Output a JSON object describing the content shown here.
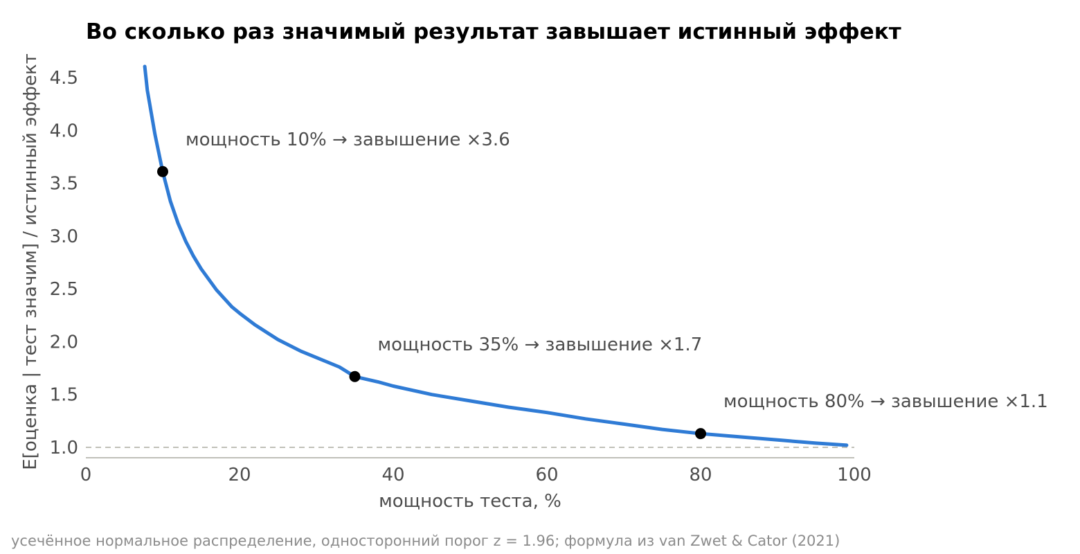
{
  "chart_data": {
    "type": "line",
    "title": "Во сколько раз значимый результат завышает истинный эффект",
    "xlabel": "мощность теста, %",
    "ylabel": "E[оценка | тест значим] / истинный эффект",
    "xlim": [
      0,
      100
    ],
    "ylim": [
      0.9,
      4.65
    ],
    "x_ticks": [
      "0",
      "20",
      "40",
      "60",
      "80",
      "100"
    ],
    "y_ticks": [
      "1.0",
      "1.5",
      "2.0",
      "2.5",
      "3.0",
      "3.5",
      "4.0",
      "4.5"
    ],
    "reference_line": {
      "y": 1.0,
      "style": "dashed",
      "color": "#c0c0b8"
    },
    "series": [
      {
        "color": "#2f7bd5",
        "x": [
          7.5,
          8,
          9,
          10,
          11,
          12,
          13,
          14,
          15,
          17,
          19,
          20,
          22,
          25,
          28,
          30,
          33,
          35,
          38,
          40,
          45,
          50,
          55,
          60,
          65,
          70,
          75,
          80,
          85,
          90,
          95,
          99
        ],
        "y": [
          4.72,
          4.38,
          3.96,
          3.61,
          3.33,
          3.12,
          2.95,
          2.81,
          2.69,
          2.49,
          2.33,
          2.27,
          2.16,
          2.02,
          1.91,
          1.85,
          1.76,
          1.67,
          1.62,
          1.58,
          1.5,
          1.44,
          1.38,
          1.33,
          1.27,
          1.22,
          1.17,
          1.13,
          1.1,
          1.07,
          1.04,
          1.02
        ]
      }
    ],
    "highlight_points": [
      {
        "x": 10,
        "y": 3.61,
        "label": "мощность 10% → завышение ×3.6"
      },
      {
        "x": 35,
        "y": 1.67,
        "label": "мощность 35% → завышение ×1.7"
      },
      {
        "x": 80,
        "y": 1.13,
        "label": "мощность 80% → завышение ×1.1"
      }
    ],
    "footnote": "усечённое нормальное распределение, односторонний порог z = 1.96; формула из van Zwet & Cator (2021)",
    "grid": false,
    "legend": "none"
  }
}
